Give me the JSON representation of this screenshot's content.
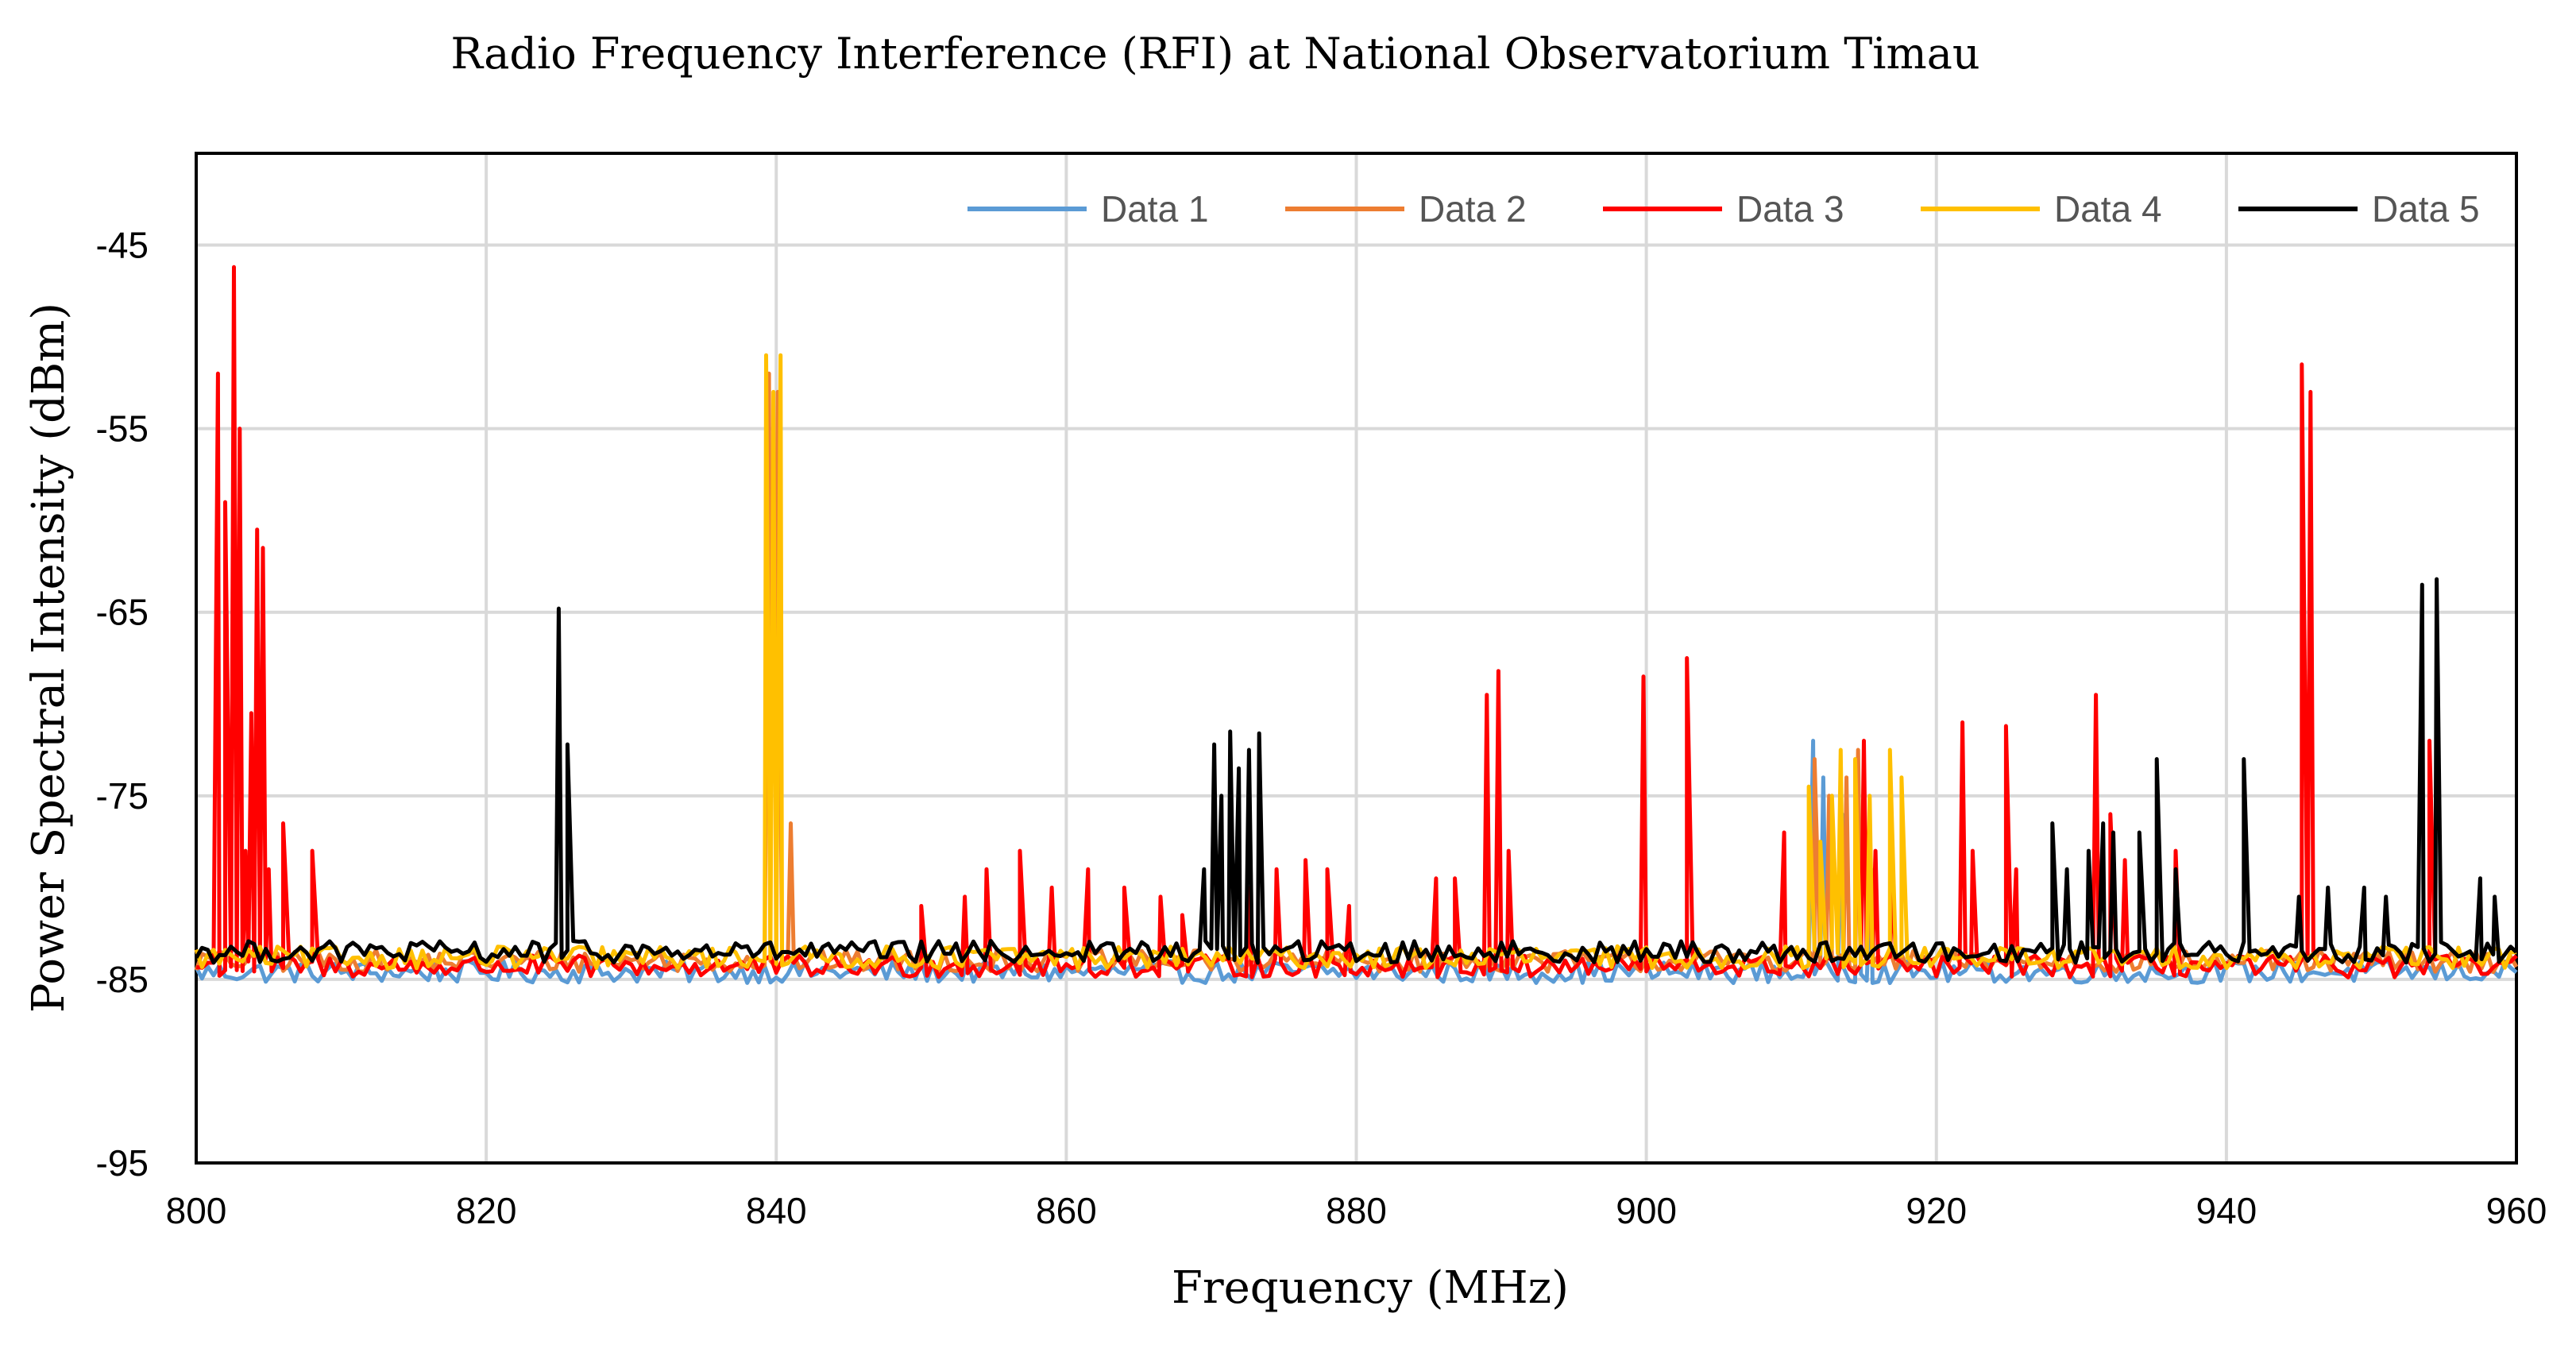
{
  "chart_data": {
    "type": "line",
    "title": "Radio Frequency Interference (RFI) at National Observatorium  Timau",
    "xlabel": "Frequency (MHz)",
    "ylabel": "Power Spectral Intensity (dBm)",
    "xlim": [
      800,
      960
    ],
    "ylim": [
      -95,
      -40
    ],
    "x_ticks": [
      800,
      820,
      840,
      860,
      880,
      900,
      920,
      940,
      960
    ],
    "y_ticks": [
      -95,
      -85,
      -75,
      -65,
      -55,
      -45
    ],
    "grid": true,
    "legend_position": "top-right",
    "baseline_step_mhz": 0.4,
    "series": [
      {
        "name": "Data 1",
        "color": "#5B9BD5",
        "baseline": -84.6,
        "peaks": [
          [
            911.5,
            -72
          ],
          [
            912.2,
            -74
          ],
          [
            913.5,
            -76
          ],
          [
            914.5,
            -73
          ],
          [
            915.5,
            -79
          ]
        ]
      },
      {
        "name": "Data 2",
        "color": "#ED7D31",
        "baseline": -84.0,
        "peaks": [
          [
            839.5,
            -52
          ],
          [
            840.1,
            -53
          ],
          [
            841.0,
            -76.5
          ],
          [
            911.6,
            -73
          ],
          [
            912.6,
            -75
          ],
          [
            913.8,
            -74
          ],
          [
            914.6,
            -72.5
          ],
          [
            915.3,
            -79
          ]
        ]
      },
      {
        "name": "Data 3",
        "color": "#FF0000",
        "baseline": -84.3,
        "peaks": [
          [
            801.5,
            -52
          ],
          [
            802.0,
            -59
          ],
          [
            802.6,
            -46.2
          ],
          [
            803.0,
            -55
          ],
          [
            803.4,
            -78
          ],
          [
            803.8,
            -70.5
          ],
          [
            804.2,
            -60.5
          ],
          [
            804.6,
            -61.5
          ],
          [
            805.0,
            -79
          ],
          [
            806.0,
            -76.5
          ],
          [
            808.0,
            -78
          ],
          [
            850.0,
            -81
          ],
          [
            853.0,
            -80.5
          ],
          [
            854.5,
            -79
          ],
          [
            856.8,
            -78
          ],
          [
            859.0,
            -80
          ],
          [
            861.5,
            -79
          ],
          [
            864.0,
            -80
          ],
          [
            866.5,
            -80.5
          ],
          [
            868.0,
            -81.5
          ],
          [
            872.5,
            -80
          ],
          [
            874.5,
            -79
          ],
          [
            876.5,
            -78.5
          ],
          [
            878.0,
            -79
          ],
          [
            879.5,
            -81
          ],
          [
            885.5,
            -79.5
          ],
          [
            886.8,
            -79.5
          ],
          [
            889.0,
            -69.5
          ],
          [
            889.8,
            -68.2
          ],
          [
            890.5,
            -78
          ],
          [
            899.8,
            -68.5
          ],
          [
            902.8,
            -67.5
          ],
          [
            909.5,
            -77
          ],
          [
            915.0,
            -72
          ],
          [
            915.8,
            -78
          ],
          [
            917.0,
            -79.5
          ],
          [
            921.8,
            -71
          ],
          [
            922.5,
            -78
          ],
          [
            924.8,
            -71.2
          ],
          [
            925.5,
            -79
          ],
          [
            931.0,
            -69.5
          ],
          [
            932.0,
            -76
          ],
          [
            933.0,
            -78.5
          ],
          [
            936.5,
            -78
          ],
          [
            945.2,
            -51.5
          ],
          [
            945.8,
            -53
          ],
          [
            954.0,
            -72
          ]
        ]
      },
      {
        "name": "Data 4",
        "color": "#FFC000",
        "baseline": -83.8,
        "peaks": [
          [
            839.3,
            -51
          ],
          [
            839.8,
            -53
          ],
          [
            840.3,
            -51
          ],
          [
            911.2,
            -74.5
          ],
          [
            912.0,
            -77.5
          ],
          [
            912.8,
            -75
          ],
          [
            913.4,
            -72.5
          ],
          [
            914.4,
            -73
          ],
          [
            915.4,
            -75
          ],
          [
            916.8,
            -72.5
          ],
          [
            917.6,
            -74
          ]
        ]
      },
      {
        "name": "Data 5",
        "color": "#000000",
        "baseline": -83.5,
        "peaks": [
          [
            825.0,
            -64.8
          ],
          [
            825.6,
            -72.2
          ],
          [
            869.5,
            -79
          ],
          [
            870.2,
            -72.2
          ],
          [
            870.7,
            -75
          ],
          [
            871.3,
            -71.5
          ],
          [
            871.9,
            -73.5
          ],
          [
            872.6,
            -72.5
          ],
          [
            873.3,
            -71.6
          ],
          [
            928.0,
            -76.5
          ],
          [
            929.0,
            -79
          ],
          [
            930.5,
            -78
          ],
          [
            931.5,
            -76.5
          ],
          [
            932.2,
            -77
          ],
          [
            934.0,
            -77
          ],
          [
            935.2,
            -73
          ],
          [
            936.5,
            -79
          ],
          [
            941.2,
            -73
          ],
          [
            945.0,
            -80.5
          ],
          [
            947.0,
            -80
          ],
          [
            949.5,
            -80
          ],
          [
            951.0,
            -80.5
          ],
          [
            953.5,
            -63.5
          ],
          [
            954.5,
            -63.2
          ],
          [
            957.5,
            -79.5
          ],
          [
            958.5,
            -80.5
          ]
        ]
      }
    ]
  }
}
